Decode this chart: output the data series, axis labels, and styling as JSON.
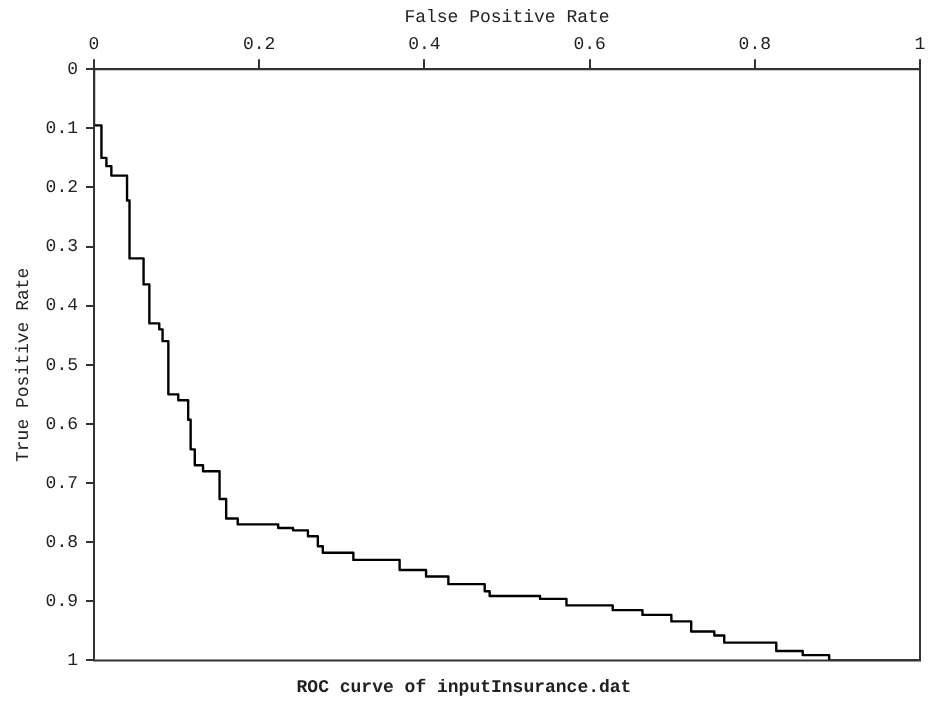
{
  "chart_data": {
    "type": "step",
    "title": "ROC curve of inputInsurance.dat",
    "xlabel": "False Positive Rate",
    "ylabel": "True Positive Rate",
    "x": [
      0,
      0,
      0.009,
      0.015,
      0.021,
      0.04,
      0.043,
      0.06,
      0.067,
      0.079,
      0.083,
      0.09,
      0.102,
      0.114,
      0.117,
      0.122,
      0.132,
      0.152,
      0.16,
      0.174,
      0.223,
      0.241,
      0.259,
      0.271,
      0.277,
      0.314,
      0.37,
      0.402,
      0.429,
      0.473,
      0.479,
      0.54,
      0.572,
      0.628,
      0.664,
      0.699,
      0.723,
      0.751,
      0.763,
      0.826,
      0.858,
      0.89,
      0.941,
      1
    ],
    "series": [
      {
        "color": "#000000",
        "values": [
          0,
          0.05,
          0.095,
          0.15,
          0.164,
          0.18,
          0.222,
          0.32,
          0.364,
          0.43,
          0.44,
          0.46,
          0.55,
          0.56,
          0.593,
          0.643,
          0.67,
          0.68,
          0.727,
          0.76,
          0.77,
          0.776,
          0.78,
          0.79,
          0.807,
          0.818,
          0.83,
          0.847,
          0.858,
          0.871,
          0.883,
          0.891,
          0.896,
          0.907,
          0.915,
          0.923,
          0.934,
          0.951,
          0.958,
          0.97,
          0.984,
          0.991,
          1,
          1
        ]
      }
    ],
    "xlim": [
      0,
      1
    ],
    "xticks": [
      0,
      0.2,
      0.4,
      0.6,
      0.8,
      1
    ],
    "ylim": [
      1,
      0
    ],
    "yticks": [
      0,
      0.1,
      0.2,
      0.3,
      0.4,
      0.5,
      0.6,
      0.7,
      0.8,
      0.9,
      1
    ],
    "grid": false,
    "legend": false
  }
}
